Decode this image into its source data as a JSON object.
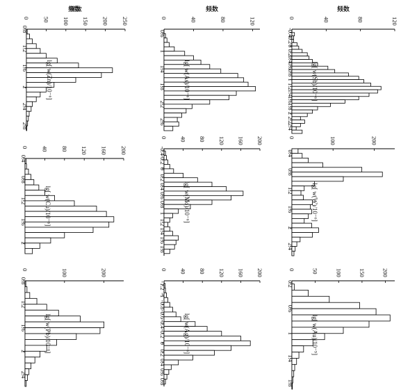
{
  "count_label": "频数",
  "chart_data": [
    {
      "type": "bar",
      "orientation": "vertical-rotated",
      "xlabel": "lg[ w(Zn)/10⁻⁶]",
      "ylim": [
        0,
        250
      ],
      "yticks": [
        0,
        50,
        100,
        150,
        200,
        250
      ],
      "xlim": [
        0.8,
        2.9
      ],
      "xticks": [
        "0.8",
        "1.2",
        "1.6",
        "2",
        "2.4",
        "2.8"
      ],
      "bins": [
        0.8,
        0.9,
        1.0,
        1.1,
        1.2,
        1.3,
        1.4,
        1.5,
        1.6,
        1.7,
        1.8,
        1.9,
        2.0,
        2.1,
        2.2,
        2.3,
        2.4,
        2.5,
        2.6,
        2.7,
        2.8
      ],
      "values": [
        2,
        8,
        15,
        25,
        35,
        50,
        78,
        132,
        218,
        190,
        125,
        70,
        50,
        35,
        25,
        15,
        12,
        7,
        5,
        3,
        1
      ]
    },
    {
      "type": "bar",
      "orientation": "vertical-rotated",
      "xlabel": "lg[ w(As)/10⁻⁶]",
      "ylim": [
        0,
        130
      ],
      "yticks": [
        0,
        40,
        80,
        120
      ],
      "xlim": [
        0.5,
        2.8
      ],
      "xticks": [
        "0.6",
        "1",
        "1.4",
        "1.8",
        "2.2",
        "2.6"
      ],
      "bins": [
        0.6,
        0.7,
        0.8,
        0.9,
        1.0,
        1.1,
        1.2,
        1.3,
        1.4,
        1.5,
        1.6,
        1.7,
        1.8,
        1.9,
        2.0,
        2.1,
        2.2,
        2.3,
        2.4,
        2.5,
        2.6,
        2.7
      ],
      "values": [
        2,
        4,
        7,
        14,
        28,
        40,
        50,
        62,
        77,
        100,
        108,
        114,
        124,
        98,
        88,
        62,
        38,
        30,
        24,
        18,
        20,
        12
      ]
    },
    {
      "type": "bar",
      "orientation": "vertical-rotated",
      "xlabel": "lg[ w(Sb)/10⁻⁶]",
      "ylim": [
        0,
        120
      ],
      "yticks": [
        0,
        40,
        80,
        120
      ],
      "xlim": [
        -0.5,
        2.6
      ],
      "xticks": [
        "-0.4",
        "-0.2",
        "0",
        "0.2",
        "0.4",
        "0.6",
        "0.8",
        "1",
        "1.2",
        "1.4",
        "1.6",
        "1.8",
        "2",
        "2.2",
        "2.4"
      ],
      "bins": [
        -0.4,
        -0.3,
        -0.2,
        -0.1,
        0,
        0.1,
        0.2,
        0.3,
        0.4,
        0.5,
        0.6,
        0.7,
        0.8,
        0.9,
        1.0,
        1.1,
        1.2,
        1.3,
        1.4,
        1.5,
        1.6,
        1.7,
        1.8,
        1.9,
        2.0,
        2.1,
        2.2,
        2.3,
        2.4,
        2.5
      ],
      "values": [
        3,
        2,
        2,
        6,
        8,
        12,
        18,
        20,
        24,
        30,
        42,
        50,
        66,
        78,
        84,
        92,
        104,
        100,
        90,
        78,
        62,
        45,
        30,
        24,
        18,
        10,
        15,
        10,
        5,
        12
      ]
    },
    {
      "type": "bar",
      "orientation": "vertical-rotated",
      "xlabel": "lg[ w(Cu)/10⁻⁶]",
      "ylim": [
        0,
        200
      ],
      "yticks": [
        0,
        40,
        80,
        120,
        160,
        200
      ],
      "xlim": [
        0.4,
        2.2
      ],
      "xticks": [
        "0.4",
        "0.8",
        "1.2",
        "1.6",
        "2"
      ],
      "bins": [
        0.4,
        0.5,
        0.6,
        0.7,
        0.8,
        0.9,
        1.0,
        1.1,
        1.2,
        1.3,
        1.4,
        1.5,
        1.6,
        1.7,
        1.8,
        1.9,
        2.0,
        2.1
      ],
      "values": [
        2,
        3,
        7,
        12,
        18,
        28,
        40,
        60,
        100,
        145,
        165,
        180,
        170,
        138,
        80,
        52,
        30,
        15
      ]
    },
    {
      "type": "bar",
      "orientation": "vertical-rotated",
      "xlabel": "lg[ w(Mo)/10⁻⁶]",
      "ylim": [
        0,
        200
      ],
      "yticks": [
        0,
        40,
        80,
        120,
        160,
        200
      ],
      "xlim": [
        -0.45,
        1.95
      ],
      "xticks": [
        "-0.4",
        "-0.2",
        "0",
        "0.2",
        "0.4",
        "0.6",
        "0.8",
        "1",
        "1.2",
        "1.4",
        "1.6",
        "1.8"
      ],
      "bins": [
        -0.4,
        -0.3,
        -0.2,
        -0.1,
        0,
        0.1,
        0.2,
        0.3,
        0.4,
        0.5,
        0.6,
        0.7,
        0.8,
        0.9,
        1.0,
        1.1,
        1.2,
        1.3,
        1.4,
        1.5,
        1.6,
        1.7,
        1.8
      ],
      "values": [
        3,
        5,
        8,
        12,
        20,
        40,
        70,
        100,
        130,
        165,
        140,
        100,
        55,
        30,
        18,
        12,
        8,
        12,
        18,
        30,
        25,
        22,
        12
      ]
    },
    {
      "type": "bar",
      "orientation": "vertical-rotated",
      "xlabel": "lg[ w(W)/10⁻⁶]",
      "ylim": [
        0,
        250
      ],
      "yticks": [
        0,
        100,
        200
      ],
      "xlim": [
        0.3,
        2.6
      ],
      "xticks": [
        "0.4",
        "0.8",
        "1.2",
        "1.6",
        "2",
        "2.4"
      ],
      "bins": [
        0.3,
        0.4,
        0.5,
        0.6,
        0.7,
        0.8,
        0.9,
        1.0,
        1.1,
        1.2,
        1.3,
        1.4,
        1.5,
        1.6,
        1.7,
        1.8,
        1.9,
        2.0,
        2.1,
        2.2,
        2.3,
        2.4,
        2.5
      ],
      "values": [
        15,
        25,
        40,
        75,
        170,
        220,
        125,
        55,
        30,
        22,
        28,
        50,
        45,
        48,
        40,
        30,
        48,
        65,
        50,
        20,
        12,
        8,
        5
      ]
    },
    {
      "type": "bar",
      "orientation": "vertical-rotated",
      "xlabel": "lg[ w(Pb)/10⁻⁶]",
      "ylim": [
        0,
        250
      ],
      "yticks": [
        0,
        100,
        200
      ],
      "xlim": [
        0.8,
        2.6
      ],
      "xticks": [
        "0.8",
        "1.2",
        "1.6",
        "2",
        "2.4"
      ],
      "bins": [
        0.8,
        0.9,
        1.0,
        1.1,
        1.2,
        1.3,
        1.4,
        1.5,
        1.6,
        1.7,
        1.8,
        1.9,
        2.0,
        2.1,
        2.2,
        2.3,
        2.4,
        2.5
      ],
      "values": [
        2,
        5,
        12,
        30,
        55,
        85,
        140,
        200,
        190,
        130,
        80,
        55,
        38,
        25,
        15,
        10,
        6,
        3
      ]
    },
    {
      "type": "bar",
      "orientation": "vertical-rotated",
      "xlabel": "lg[ w(Ag)/10⁻⁶]",
      "ylim": [
        0,
        200
      ],
      "yticks": [
        0,
        40,
        80,
        120,
        160,
        200
      ],
      "xlim": [
        -1.3,
        0.9
      ],
      "xticks": [
        "-1.2",
        "-1",
        "-0.8",
        "-0.6",
        "-0.4",
        "-0.2",
        "0",
        "0.2",
        "0.4",
        "0.6",
        "0.8"
      ],
      "bins": [
        -1.25,
        -1.15,
        -1.05,
        -0.95,
        -0.85,
        -0.75,
        -0.65,
        -0.55,
        -0.45,
        -0.35,
        -0.25,
        -0.15,
        -0.05,
        0.05,
        0.15,
        0.25,
        0.35,
        0.45,
        0.55,
        0.65,
        0.75
      ],
      "values": [
        2,
        3,
        5,
        8,
        12,
        18,
        25,
        35,
        65,
        90,
        120,
        160,
        180,
        140,
        105,
        60,
        30,
        15,
        10,
        6,
        3
      ]
    },
    {
      "type": "bar",
      "orientation": "vertical-rotated",
      "xlabel": "lg[ w(Au)/10⁻⁹]",
      "ylim": [
        0,
        220
      ],
      "yticks": [
        0,
        50,
        100,
        150,
        200
      ],
      "xlim": [
        0.15,
        1.9
      ],
      "xticks": [
        "0.2",
        "0.6",
        "1",
        "1.4",
        "1.8"
      ],
      "bins": [
        0.2,
        0.3,
        0.4,
        0.5,
        0.6,
        0.7,
        0.8,
        0.9,
        1.0,
        1.1,
        1.2,
        1.3,
        1.4,
        1.5,
        1.6,
        1.7,
        1.8
      ],
      "values": [
        5,
        35,
        80,
        145,
        180,
        210,
        165,
        110,
        70,
        45,
        25,
        15,
        10,
        6,
        4,
        2,
        1
      ]
    }
  ]
}
